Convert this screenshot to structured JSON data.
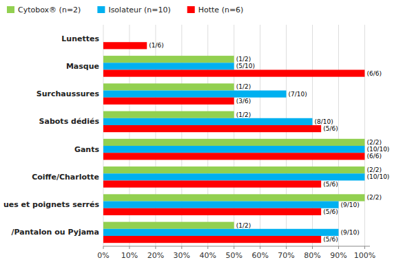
{
  "chart_data": {
    "type": "bar",
    "orientation": "horizontal",
    "categories": [
      "Lunettes",
      "Masque",
      "Surchaussures",
      "Sabots dédiés",
      "Gants",
      "Coiffe/Charlotte",
      "ues et poignets serrés",
      "/Pantalon ou Pyjama"
    ],
    "series": [
      {
        "name": "Cytobox® (n=2)",
        "color": "#92d050",
        "values": [
          0,
          0.5,
          0.5,
          0.5,
          1.0,
          1.0,
          1.0,
          0.5
        ],
        "value_labels": [
          null,
          "(1/2)",
          "(1/2)",
          "(1/2)",
          "(2/2)",
          "(2/2)",
          "(2/2)",
          "(1/2)"
        ]
      },
      {
        "name": "Isolateur (n=10)",
        "color": "#00b0f0",
        "values": [
          0,
          0.5,
          0.7,
          0.8,
          1.0,
          1.0,
          0.9,
          0.9
        ],
        "value_labels": [
          null,
          "(5/10)",
          "(7/10)",
          "(8/10)",
          "(10/10)",
          "(10/10)",
          "(9/10)",
          "(9/10)"
        ]
      },
      {
        "name": "Hotte (n=6)",
        "color": "#ff0000",
        "values": [
          0.1667,
          1.0,
          0.5,
          0.8333,
          1.0,
          0.8333,
          0.8333,
          0.8333
        ],
        "value_labels": [
          "(1/6)",
          "(6/6)",
          "(3/6)",
          "(5/6)",
          "(6/6)",
          "(5/6)",
          "(5/6)",
          "(5/6)"
        ]
      }
    ],
    "xlim": [
      0,
      1.02
    ],
    "xticks": [
      {
        "value": 0,
        "label": "0%"
      },
      {
        "value": 0.1,
        "label": "10%"
      },
      {
        "value": 0.2,
        "label": "20%"
      },
      {
        "value": 0.3,
        "label": "30%"
      },
      {
        "value": 0.4,
        "label": "40%"
      },
      {
        "value": 0.5,
        "label": "50%"
      },
      {
        "value": 0.6,
        "label": "60%"
      },
      {
        "value": 0.7,
        "label": "70%"
      },
      {
        "value": 0.8,
        "label": "80%"
      },
      {
        "value": 0.9,
        "label": "90%"
      },
      {
        "value": 1.0,
        "label": "100%"
      }
    ],
    "grid": true,
    "legend": "top-left",
    "data_labels": true
  }
}
